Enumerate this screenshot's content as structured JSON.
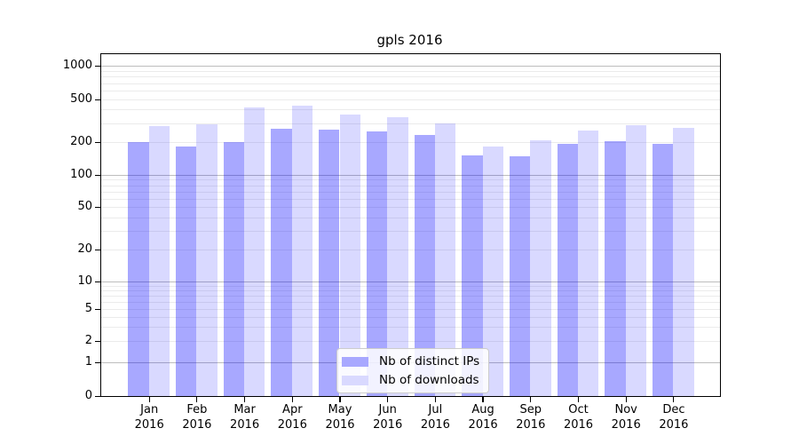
{
  "figure": {
    "title": "gpls 2016"
  },
  "chart_data": {
    "type": "bar",
    "title": "gpls 2016",
    "categories": [
      "Jan 2016",
      "Feb 2016",
      "Mar 2016",
      "Apr 2016",
      "May 2016",
      "Jun 2016",
      "Jul 2016",
      "Aug 2016",
      "Sep 2016",
      "Oct 2016",
      "Nov 2016",
      "Dec 2016"
    ],
    "series": [
      {
        "name": "Nb of distinct IPs",
        "color": "rgba(0,0,255,0.34)",
        "color_on_white": "#a8a8ff",
        "values": [
          200,
          180,
          200,
          265,
          260,
          250,
          230,
          150,
          147,
          193,
          202,
          193
        ]
      },
      {
        "name": "Nb of downloads",
        "color": "rgba(0,0,255,0.15)",
        "color_on_white": "#d9d9ff",
        "values": [
          280,
          290,
          420,
          435,
          360,
          340,
          300,
          180,
          205,
          255,
          285,
          270
        ]
      }
    ],
    "xlabel": "",
    "ylabel": "",
    "yscale": "symlog",
    "yticks": [
      0,
      1,
      2,
      5,
      10,
      20,
      50,
      100,
      200,
      500,
      1000
    ],
    "ylim": [
      0,
      1300
    ],
    "grid": true,
    "gridline_major_color": "#bdbdbd",
    "gridline_minor_color": "#ebebeb",
    "legend_position": "lower center-left inside plot"
  }
}
